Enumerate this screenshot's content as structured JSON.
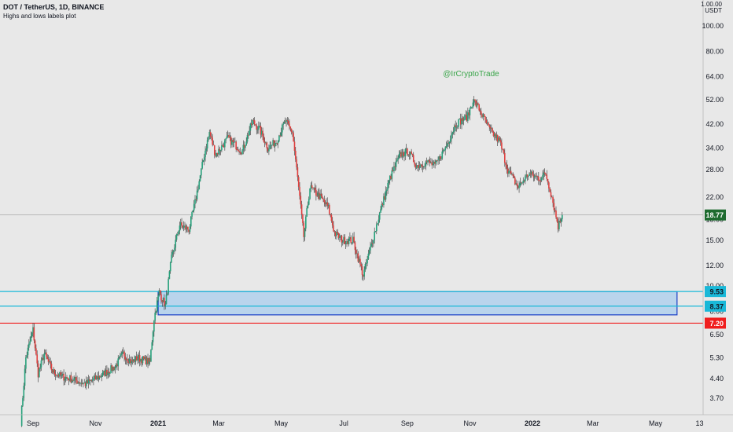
{
  "header": {
    "symbol": "DOT / TetherUS, 1D, BINANCE",
    "indicator": "Highs and lows labels plot",
    "scale_top": "1.00.00",
    "currency": "USDT"
  },
  "watermark": "@IrCryptoTrade",
  "colors": {
    "background": "#e8e8e8",
    "up": "#26a17b",
    "down": "#e0403f",
    "wick": "#333333",
    "zone_fill": "#b9d4ec",
    "zone_border": "#1a3fc6",
    "cyan": "#19b8d8",
    "red": "#f01e1e",
    "last_price_bg": "#1e6b2f",
    "watermark": "#3aa54a"
  },
  "chart_data": {
    "type": "candlestick",
    "scale": "log",
    "ylim": [
      3.2,
      126
    ],
    "y_ticks": [
      "100.00",
      "80.00",
      "64.00",
      "52.00",
      "42.00",
      "34.00",
      "28.00",
      "22.00",
      "18.00",
      "15.00",
      "12.00",
      "10.00",
      "8.00",
      "6.50",
      "5.30",
      "4.40",
      "3.70"
    ],
    "y_tick_values": [
      100,
      80,
      64,
      52,
      42,
      34,
      28,
      22,
      18,
      15,
      12,
      10,
      8,
      6.5,
      5.3,
      4.4,
      3.7
    ],
    "x_ticks": [
      "Sep",
      "Nov",
      "2021",
      "Mar",
      "May",
      "Jul",
      "Sep",
      "Nov",
      "2022",
      "Mar",
      "May",
      "13"
    ],
    "x_tick_dates": [
      "2020-09-01",
      "2020-11-01",
      "2021-01-01",
      "2021-03-01",
      "2021-05-01",
      "2021-07-01",
      "2021-09-01",
      "2021-11-01",
      "2022-01-01",
      "2022-03-01",
      "2022-05-01",
      "2022-06-13"
    ],
    "bold_x_ticks": [
      "2021",
      "2022"
    ],
    "price_path": [
      [
        "2020-08-20",
        3.0
      ],
      [
        "2020-08-25",
        5.3
      ],
      [
        "2020-09-01",
        6.8
      ],
      [
        "2020-09-06",
        4.6
      ],
      [
        "2020-09-12",
        5.5
      ],
      [
        "2020-09-20",
        4.7
      ],
      [
        "2020-09-28",
        4.5
      ],
      [
        "2020-10-08",
        4.4
      ],
      [
        "2020-10-22",
        4.2
      ],
      [
        "2020-11-05",
        4.5
      ],
      [
        "2020-11-20",
        4.9
      ],
      [
        "2020-11-28",
        5.5
      ],
      [
        "2020-12-06",
        5.1
      ],
      [
        "2020-12-12",
        5.3
      ],
      [
        "2020-12-24",
        5.1
      ],
      [
        "2020-12-28",
        7.5
      ],
      [
        "2021-01-02",
        9.5
      ],
      [
        "2021-01-08",
        8.4
      ],
      [
        "2021-01-14",
        12.8
      ],
      [
        "2021-01-22",
        17.2
      ],
      [
        "2021-01-31",
        16.5
      ],
      [
        "2021-02-06",
        21.0
      ],
      [
        "2021-02-15",
        32.0
      ],
      [
        "2021-02-20",
        39.0
      ],
      [
        "2021-02-26",
        32.0
      ],
      [
        "2021-03-10",
        37.0
      ],
      [
        "2021-03-24",
        33.0
      ],
      [
        "2021-04-03",
        43.0
      ],
      [
        "2021-04-10",
        40.0
      ],
      [
        "2021-04-18",
        34.0
      ],
      [
        "2021-04-26",
        36.0
      ],
      [
        "2021-05-05",
        43.0
      ],
      [
        "2021-05-12",
        39.0
      ],
      [
        "2021-05-17",
        26.0
      ],
      [
        "2021-05-23",
        15.5
      ],
      [
        "2021-05-29",
        24.0
      ],
      [
        "2021-06-08",
        22.0
      ],
      [
        "2021-06-16",
        20.0
      ],
      [
        "2021-06-22",
        16.0
      ],
      [
        "2021-06-30",
        15.0
      ],
      [
        "2021-07-10",
        15.0
      ],
      [
        "2021-07-20",
        11.0
      ],
      [
        "2021-07-28",
        14.5
      ],
      [
        "2021-08-05",
        19.0
      ],
      [
        "2021-08-15",
        26.0
      ],
      [
        "2021-08-25",
        32.0
      ],
      [
        "2021-09-02",
        33.0
      ],
      [
        "2021-09-10",
        29.0
      ],
      [
        "2021-09-20",
        30.0
      ],
      [
        "2021-09-28",
        29.0
      ],
      [
        "2021-10-08",
        34.0
      ],
      [
        "2021-10-18",
        42.0
      ],
      [
        "2021-10-30",
        45.0
      ],
      [
        "2021-11-04",
        52.0
      ],
      [
        "2021-11-10",
        48.0
      ],
      [
        "2021-11-20",
        40.0
      ],
      [
        "2021-11-30",
        36.0
      ],
      [
        "2021-12-08",
        28.0
      ],
      [
        "2021-12-18",
        24.0
      ],
      [
        "2021-12-28",
        27.0
      ],
      [
        "2022-01-08",
        26.0
      ],
      [
        "2022-01-14",
        27.0
      ],
      [
        "2022-01-20",
        22.0
      ],
      [
        "2022-01-26",
        17.0
      ],
      [
        "2022-01-30",
        18.77
      ]
    ],
    "last_price": 18.77,
    "levels": [
      {
        "label": "9.53",
        "value": 9.53,
        "color": "cyan"
      },
      {
        "label": "8.37",
        "value": 8.37,
        "color": "cyan"
      },
      {
        "label": "7.20",
        "value": 7.2,
        "color": "red"
      }
    ],
    "zone": {
      "start": "2021-01-01",
      "end": "2022-05-22",
      "top": 9.53,
      "bottom": 7.75
    }
  }
}
